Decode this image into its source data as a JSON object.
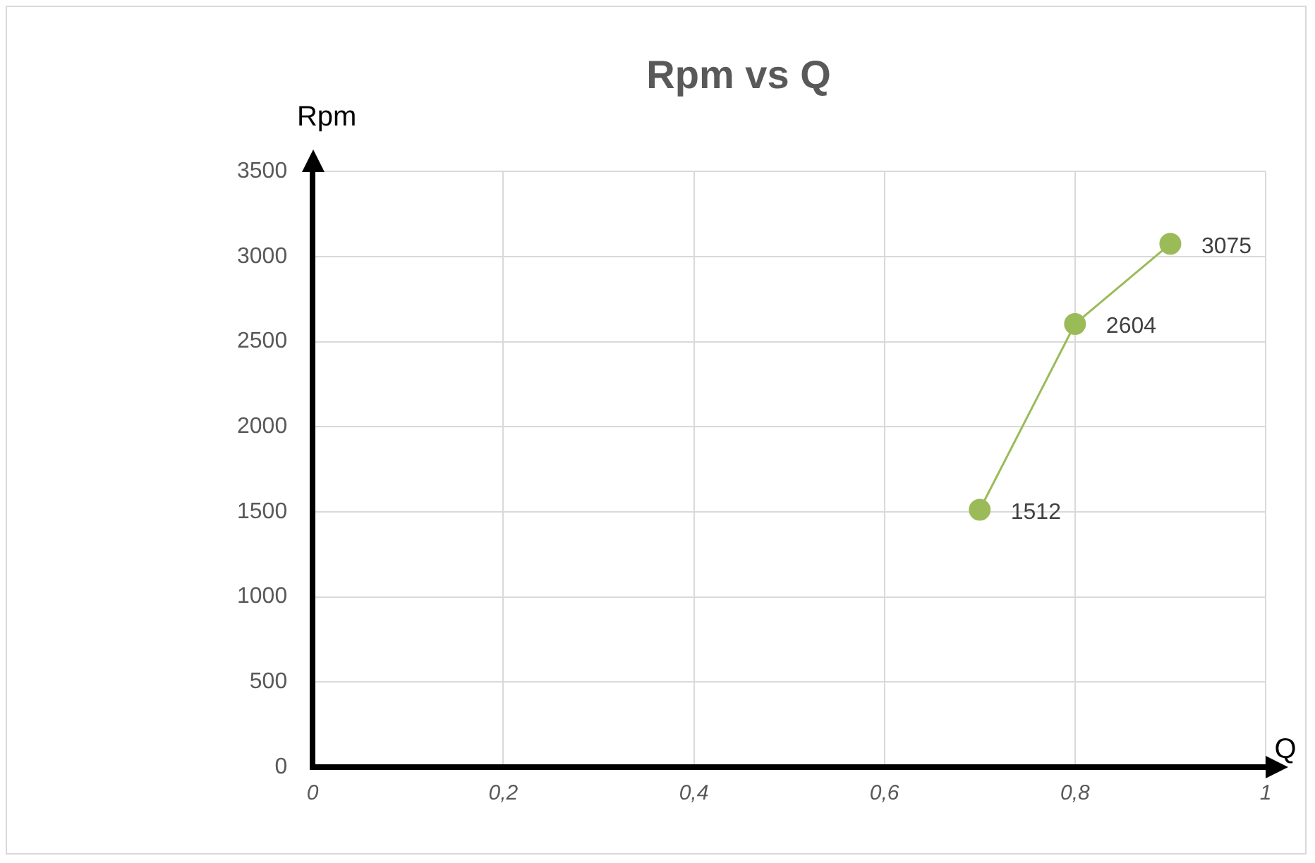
{
  "chart_data": {
    "type": "line",
    "title": "Rpm vs Q",
    "xlabel": "Q",
    "ylabel": "Rpm",
    "x": [
      0.7,
      0.8,
      0.9
    ],
    "series": [
      {
        "color": "#9bbb59",
        "values": [
          1512,
          2604,
          3075
        ]
      }
    ],
    "xlim": [
      0,
      1
    ],
    "xticks": [
      0,
      {
        "value": 0.2,
        "label": "0,2"
      },
      {
        "value": 0.4,
        "label": "0,4"
      },
      {
        "value": 0.6,
        "label": "0,6"
      },
      {
        "value": 0.8,
        "label": "0,8"
      },
      1
    ],
    "ylim": [
      0,
      3500
    ],
    "yticks": [
      0,
      500,
      1000,
      1500,
      2000,
      2500,
      3000,
      3500
    ],
    "grid": true,
    "legend": false,
    "marker": "circle",
    "line_style": "solid",
    "data_labels": true
  }
}
